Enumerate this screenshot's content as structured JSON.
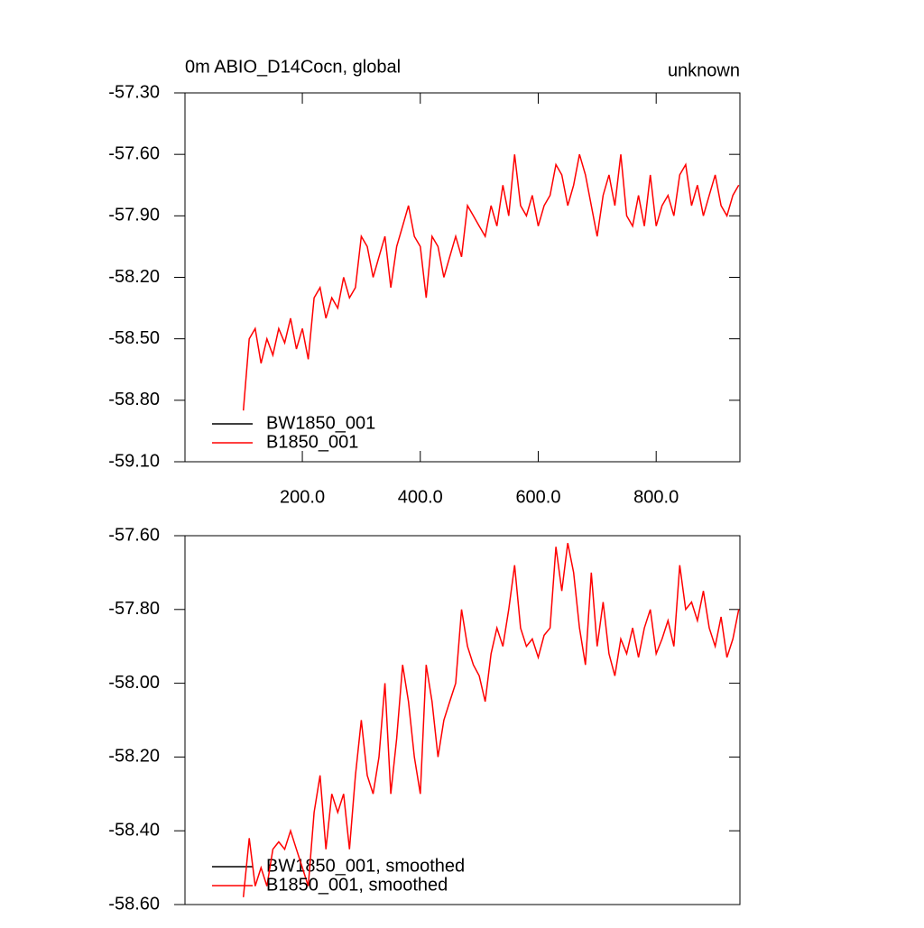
{
  "chart_data": [
    {
      "type": "line",
      "title": "0m ABIO_D14Cocn, global",
      "subtitle": "unknown",
      "x": [
        100,
        110,
        120,
        130,
        140,
        150,
        160,
        170,
        180,
        190,
        200,
        210,
        220,
        230,
        240,
        250,
        260,
        270,
        280,
        290,
        300,
        310,
        320,
        330,
        340,
        350,
        360,
        370,
        380,
        390,
        400,
        410,
        420,
        430,
        440,
        450,
        460,
        470,
        480,
        490,
        500,
        510,
        520,
        530,
        540,
        550,
        560,
        570,
        580,
        590,
        600,
        610,
        620,
        630,
        640,
        650,
        660,
        670,
        680,
        690,
        700,
        710,
        720,
        730,
        740,
        750,
        760,
        770,
        780,
        790,
        800,
        810,
        820,
        830,
        840,
        850,
        860,
        870,
        880,
        890,
        900,
        910,
        920,
        930,
        940
      ],
      "series": [
        {
          "name": "BW1850_001",
          "color": "#000000",
          "values": [
            null,
            null,
            null,
            null,
            null,
            null,
            null,
            null,
            null,
            null,
            null,
            null,
            null,
            null,
            null,
            null,
            null,
            null,
            null,
            null,
            null,
            null,
            null,
            null,
            null,
            null,
            null,
            null,
            null,
            null,
            null,
            null,
            null,
            null,
            null,
            null,
            null,
            null,
            null,
            null,
            null,
            null,
            null,
            null,
            null,
            null,
            null,
            null,
            null,
            null,
            null,
            null,
            null,
            null,
            null,
            null,
            null,
            null,
            null,
            null,
            null,
            null,
            null,
            null,
            null,
            null,
            null,
            null,
            null,
            null,
            null,
            null,
            null,
            null,
            null,
            null,
            null,
            null,
            null,
            null,
            null,
            null,
            null,
            null,
            null
          ]
        },
        {
          "name": "B1850_001",
          "color": "#ff0000",
          "values": [
            -58.85,
            -58.5,
            -58.45,
            -58.62,
            -58.5,
            -58.58,
            -58.45,
            -58.52,
            -58.4,
            -58.55,
            -58.45,
            -58.6,
            -58.3,
            -58.25,
            -58.4,
            -58.3,
            -58.35,
            -58.2,
            -58.3,
            -58.25,
            -58.0,
            -58.05,
            -58.2,
            -58.1,
            -58.0,
            -58.25,
            -58.05,
            -57.95,
            -57.85,
            -58.0,
            -58.05,
            -58.3,
            -58.0,
            -58.05,
            -58.2,
            -58.1,
            -58.0,
            -58.1,
            -57.85,
            -57.9,
            -57.95,
            -58.0,
            -57.85,
            -57.95,
            -57.75,
            -57.9,
            -57.6,
            -57.85,
            -57.9,
            -57.8,
            -57.95,
            -57.85,
            -57.8,
            -57.65,
            -57.7,
            -57.85,
            -57.75,
            -57.6,
            -57.7,
            -57.85,
            -58.0,
            -57.8,
            -57.7,
            -57.85,
            -57.6,
            -57.9,
            -57.95,
            -57.8,
            -57.95,
            -57.7,
            -57.95,
            -57.85,
            -57.8,
            -57.9,
            -57.7,
            -57.65,
            -57.85,
            -57.75,
            -57.9,
            -57.8,
            -57.7,
            -57.85,
            -57.9,
            -57.8,
            -57.75
          ]
        }
      ],
      "xlim": [
        1,
        942
      ],
      "xticks": [
        {
          "value": 200,
          "label": "200.0"
        },
        {
          "value": 400,
          "label": "400.0"
        },
        {
          "value": 600,
          "label": "600.0"
        },
        {
          "value": 800,
          "label": "800.0"
        }
      ],
      "ylim": [
        -59.1,
        -57.3
      ],
      "yticks": [
        {
          "value": -57.3,
          "label": "-57.30"
        },
        {
          "value": -57.6,
          "label": "-57.60"
        },
        {
          "value": -57.9,
          "label": "-57.90"
        },
        {
          "value": -58.2,
          "label": "-58.20"
        },
        {
          "value": -58.5,
          "label": "-58.50"
        },
        {
          "value": -58.8,
          "label": "-58.80"
        },
        {
          "value": -59.1,
          "label": "-59.10"
        }
      ],
      "legend": "lower left"
    },
    {
      "type": "line",
      "x": [
        100,
        110,
        120,
        130,
        140,
        150,
        160,
        170,
        180,
        190,
        200,
        210,
        220,
        230,
        240,
        250,
        260,
        270,
        280,
        290,
        300,
        310,
        320,
        330,
        340,
        350,
        360,
        370,
        380,
        390,
        400,
        410,
        420,
        430,
        440,
        450,
        460,
        470,
        480,
        490,
        500,
        510,
        520,
        530,
        540,
        550,
        560,
        570,
        580,
        590,
        600,
        610,
        620,
        630,
        640,
        650,
        660,
        670,
        680,
        690,
        700,
        710,
        720,
        730,
        740,
        750,
        760,
        770,
        780,
        790,
        800,
        810,
        820,
        830,
        840,
        850,
        860,
        870,
        880,
        890,
        900,
        910,
        920,
        930,
        940
      ],
      "series": [
        {
          "name": "BW1850_001, smoothed",
          "color": "#000000",
          "values": [
            null,
            null,
            null,
            null,
            null,
            null,
            null,
            null,
            null,
            null,
            null,
            null,
            null,
            null,
            null,
            null,
            null,
            null,
            null,
            null,
            null,
            null,
            null,
            null,
            null,
            null,
            null,
            null,
            null,
            null,
            null,
            null,
            null,
            null,
            null,
            null,
            null,
            null,
            null,
            null,
            null,
            null,
            null,
            null,
            null,
            null,
            null,
            null,
            null,
            null,
            null,
            null,
            null,
            null,
            null,
            null,
            null,
            null,
            null,
            null,
            null,
            null,
            null,
            null,
            null,
            null,
            null,
            null,
            null,
            null,
            null,
            null,
            null,
            null,
            null,
            null,
            null,
            null,
            null,
            null,
            null,
            null,
            null,
            null,
            null
          ]
        },
        {
          "name": "B1850_001, smoothed",
          "color": "#ff0000",
          "values": [
            -58.58,
            -58.42,
            -58.55,
            -58.5,
            -58.55,
            -58.45,
            -58.43,
            -58.45,
            -58.4,
            -58.45,
            -58.5,
            -58.55,
            -58.35,
            -58.25,
            -58.45,
            -58.3,
            -58.35,
            -58.3,
            -58.45,
            -58.25,
            -58.1,
            -58.25,
            -58.3,
            -58.2,
            -58.0,
            -58.3,
            -58.15,
            -57.95,
            -58.05,
            -58.2,
            -58.3,
            -57.95,
            -58.05,
            -58.2,
            -58.1,
            -58.05,
            -58.0,
            -57.8,
            -57.9,
            -57.95,
            -57.98,
            -58.05,
            -57.92,
            -57.85,
            -57.9,
            -57.8,
            -57.68,
            -57.85,
            -57.9,
            -57.88,
            -57.93,
            -57.87,
            -57.85,
            -57.63,
            -57.75,
            -57.62,
            -57.7,
            -57.85,
            -57.95,
            -57.7,
            -57.9,
            -57.78,
            -57.92,
            -57.98,
            -57.88,
            -57.92,
            -57.85,
            -57.93,
            -57.85,
            -57.8,
            -57.92,
            -57.88,
            -57.83,
            -57.9,
            -57.68,
            -57.8,
            -57.78,
            -57.83,
            -57.75,
            -57.85,
            -57.9,
            -57.82,
            -57.93,
            -57.88,
            -57.8
          ]
        }
      ],
      "xlim": [
        1,
        942
      ],
      "ylim": [
        -58.6,
        -57.6
      ],
      "yticks": [
        {
          "value": -57.6,
          "label": "-57.60"
        },
        {
          "value": -57.8,
          "label": "-57.80"
        },
        {
          "value": -58.0,
          "label": "-58.00"
        },
        {
          "value": -58.2,
          "label": "-58.20"
        },
        {
          "value": -58.4,
          "label": "-58.40"
        },
        {
          "value": -58.6,
          "label": "-58.60"
        }
      ],
      "legend": "lower left"
    }
  ]
}
